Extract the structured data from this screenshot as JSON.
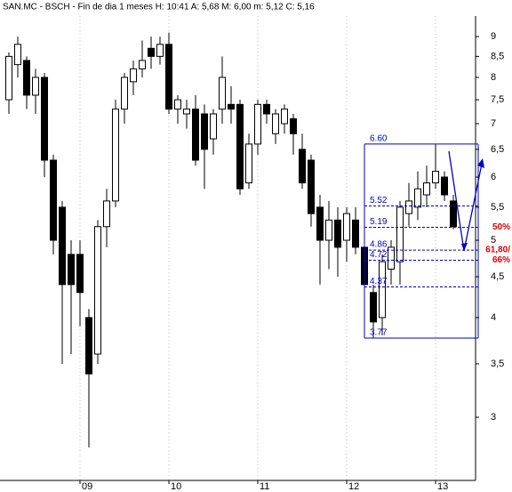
{
  "chart_data": {
    "type": "candlestick",
    "title": "SAN.MC - BSCH - Fin de dia 1 meses  H: 10:41  A: 5,68  M: 6,00  m: 5,12  C: 5,16",
    "categories": [
      null,
      null,
      null,
      null,
      null,
      null,
      null,
      null,
      "09",
      null,
      null,
      null,
      null,
      null,
      null,
      null,
      null,
      null,
      "10",
      null,
      null,
      null,
      null,
      null,
      null,
      null,
      null,
      null,
      "11",
      null,
      null,
      null,
      null,
      null,
      null,
      null,
      null,
      null,
      "12",
      null,
      null,
      null,
      null,
      null,
      null,
      null,
      null,
      null,
      "13",
      null,
      null
    ],
    "open": [
      7.5,
      8.3,
      8.4,
      7.6,
      8.0,
      6.3,
      5.5,
      4.8,
      4.8,
      4.0,
      3.6,
      5.2,
      5.6,
      7.3,
      7.9,
      8.2,
      8.7,
      8.5,
      8.8,
      7.3,
      7.2,
      7.3,
      7.2,
      6.7,
      7.3,
      7.4,
      7.4,
      5.9,
      6.6,
      7.4,
      6.8,
      7.0,
      7.1,
      6.5,
      6.3,
      5.5,
      5.0,
      5.3,
      5.0,
      5.3,
      4.9,
      4.3,
      4.0,
      4.6,
      4.7,
      5.4,
      5.5,
      5.7,
      5.9,
      6.0,
      5.6
    ],
    "high": [
      8.6,
      9.0,
      8.5,
      8.2,
      8.1,
      6.4,
      5.6,
      5.0,
      5.0,
      4.1,
      5.3,
      5.8,
      7.5,
      8.1,
      8.4,
      8.9,
      9.0,
      9.0,
      9.1,
      7.6,
      7.5,
      7.6,
      7.4,
      7.3,
      8.5,
      7.8,
      7.5,
      6.8,
      7.5,
      7.5,
      7.3,
      7.4,
      7.2,
      6.8,
      6.4,
      5.7,
      5.6,
      5.5,
      5.5,
      5.5,
      5.5,
      4.4,
      4.8,
      5.0,
      5.6,
      5.9,
      6.1,
      6.2,
      6.6,
      6.1,
      5.7
    ],
    "low": [
      7.2,
      8.0,
      7.3,
      7.2,
      6.0,
      4.8,
      3.5,
      3.6,
      3.9,
      2.75,
      3.5,
      4.9,
      5.5,
      7.0,
      7.6,
      8.0,
      8.2,
      8.3,
      7.2,
      7.0,
      6.9,
      6.2,
      5.8,
      6.4,
      7.0,
      7.0,
      5.7,
      5.8,
      6.4,
      7.0,
      6.6,
      6.8,
      6.4,
      5.8,
      5.2,
      4.4,
      4.6,
      4.5,
      4.7,
      4.8,
      4.3,
      3.77,
      3.8,
      4.4,
      4.4,
      5.2,
      5.3,
      5.5,
      5.8,
      5.6,
      5.16
    ],
    "close": [
      8.5,
      8.8,
      7.6,
      8.0,
      6.3,
      5.0,
      4.4,
      4.4,
      4.3,
      3.4,
      5.2,
      5.6,
      7.3,
      8.0,
      8.2,
      8.4,
      8.5,
      8.8,
      7.3,
      7.5,
      7.3,
      6.3,
      6.5,
      7.2,
      8.0,
      7.3,
      5.8,
      6.6,
      7.4,
      7.2,
      7.2,
      7.3,
      6.8,
      5.9,
      5.4,
      5.0,
      5.3,
      4.9,
      5.4,
      4.9,
      4.4,
      3.95,
      4.7,
      4.9,
      5.5,
      5.6,
      5.8,
      5.9,
      6.1,
      5.7,
      5.2
    ],
    "up_color": "#ffffff",
    "down_color": "#000000",
    "log_scale": true,
    "ylim": [
      2.5,
      9.55
    ],
    "yticks": [
      3,
      {
        "value": 3.5,
        "label": "3,5"
      },
      4,
      {
        "value": 4.5,
        "label": "4,5"
      },
      5,
      {
        "value": 5.5,
        "label": "5,5"
      },
      6,
      {
        "value": 6.5,
        "label": "6,5"
      },
      7,
      {
        "value": 7.5,
        "label": "7,5"
      },
      8,
      {
        "value": 8.5,
        "label": "8,5"
      },
      9
    ],
    "grid": true,
    "fibonacci": {
      "color": "#0000cc",
      "levels": [
        {
          "value": 6.6,
          "label": "6.60"
        },
        {
          "value": 5.52,
          "label": "5.52"
        },
        {
          "value": 5.19,
          "label": "5.19"
        },
        {
          "value": 4.86,
          "label": "4.86"
        },
        {
          "value": 4.72,
          "label": "4.72"
        },
        {
          "value": 4.37,
          "label": "4.37"
        },
        {
          "value": 3.77,
          "label": "3.77"
        }
      ],
      "annotations": [
        "50%",
        "61,80/",
        "66%"
      ],
      "annotation_color": "#dd0000"
    }
  }
}
